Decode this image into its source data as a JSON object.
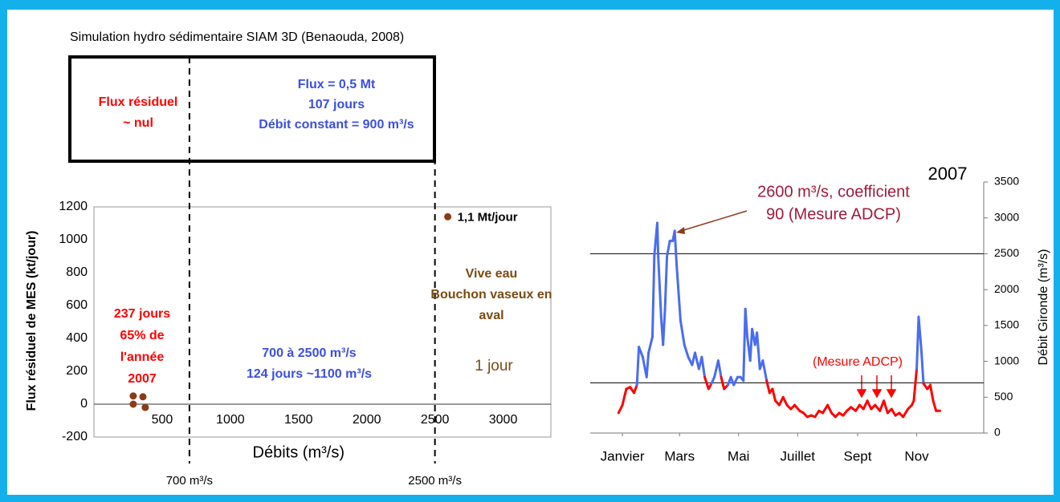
{
  "chart_data": [
    {
      "type": "scatter",
      "title": "Simulation hydro sédimentaire SIAM 3D (Benaouda, 2008)",
      "xlabel": "Débits (m³/s)",
      "ylabel": "Flux résiduel de MES (kt/jour)",
      "x": [
        288,
        359,
        288,
        376,
        2594
      ],
      "values": [
        50,
        45,
        0,
        -20,
        1140
      ],
      "color": "#8b3a1a",
      "xlim": [
        0,
        3350
      ],
      "ylim": [
        -200,
        1200
      ],
      "xticks": [
        500,
        1000,
        1500,
        2000,
        2500,
        3000
      ],
      "yticks": [
        -200,
        0,
        200,
        400,
        600,
        800,
        1000,
        1200
      ],
      "vlines": [
        700,
        2500
      ],
      "vline_labels": [
        "700 m³/s",
        "2500 m³/s"
      ],
      "point_label": "1,1 Mt/jour",
      "box": [
        {
          "lines": [
            "Flux résiduel",
            "~ nul"
          ],
          "color": "#ff0000"
        },
        {
          "lines": [
            "Flux = 0,5 Mt",
            "107 jours",
            "Débit constant = 900 m³/s"
          ],
          "color": "#3b4fe0"
        }
      ],
      "annotations": [
        {
          "lines": [
            "237 jours",
            "65% de",
            "l'année",
            "2007"
          ],
          "color": "#ff0000"
        },
        {
          "lines": [
            "700 à 2500 m³/s",
            "124 jours ~1100 m³/s"
          ],
          "color": "#3b4fe0"
        },
        {
          "lines": [
            "Vive eau",
            "Bouchon vaseux en",
            "aval"
          ],
          "color": "#7a4a10"
        },
        {
          "lines": [
            "1 jour"
          ],
          "color": "#7a4a10"
        }
      ]
    },
    {
      "type": "line",
      "title": "2007",
      "ylabel": "Débit Gironde (m³/s)",
      "x": [
        11,
        15,
        19,
        23,
        27,
        30,
        32,
        36,
        40,
        42,
        46,
        48,
        51,
        52,
        55,
        57,
        59,
        61,
        64,
        67,
        69,
        71,
        75,
        79,
        83,
        87,
        90,
        94,
        97,
        100,
        104,
        107,
        110,
        114,
        117,
        120,
        124,
        127,
        130,
        134,
        137,
        140,
        142,
        144,
        147,
        149,
        152,
        154,
        157,
        160,
        164,
        167,
        170,
        173,
        177,
        181,
        185,
        189,
        193,
        198,
        202,
        206,
        210,
        214,
        218,
        222,
        227,
        231,
        235,
        239,
        243,
        247,
        251,
        256,
        260,
        264,
        268,
        272,
        276,
        281,
        285,
        289,
        293,
        297,
        301,
        305,
        310,
        314,
        316,
        319,
        321,
        324,
        326,
        330,
        333,
        336,
        339,
        343
      ],
      "values": [
        280,
        390,
        615,
        640,
        560,
        670,
        1200,
        1060,
        780,
        1120,
        1340,
        2480,
        2930,
        2460,
        1620,
        1230,
        1730,
        2460,
        2680,
        2680,
        2820,
        2350,
        1570,
        1230,
        1060,
        950,
        1120,
        895,
        1060,
        780,
        615,
        690,
        780,
        1010,
        780,
        615,
        670,
        780,
        670,
        780,
        780,
        730,
        1730,
        1340,
        1010,
        1450,
        1230,
        1400,
        895,
        1010,
        730,
        560,
        615,
        450,
        390,
        500,
        390,
        335,
        390,
        310,
        280,
        225,
        245,
        225,
        310,
        280,
        390,
        280,
        225,
        280,
        245,
        310,
        360,
        310,
        390,
        335,
        450,
        335,
        390,
        310,
        450,
        280,
        335,
        245,
        280,
        225,
        335,
        390,
        450,
        895,
        1620,
        1120,
        690,
        615,
        670,
        450,
        310,
        310
      ],
      "threshold": 700,
      "color_above": "#4a6cf0",
      "color_below": "#ff0000",
      "xlim": [
        0,
        365
      ],
      "ylim": [
        0,
        3500
      ],
      "xticks": [
        {
          "value": 15,
          "label": "Janvier"
        },
        {
          "value": 74,
          "label": "Mars"
        },
        {
          "value": 135,
          "label": "Mai"
        },
        {
          "value": 196,
          "label": "Juillet"
        },
        {
          "value": 258,
          "label": "Sept"
        },
        {
          "value": 319,
          "label": "Nov"
        }
      ],
      "yticks": [
        0,
        500,
        1000,
        1500,
        2000,
        2500,
        3000,
        3500
      ],
      "hlines": [
        700,
        2500
      ],
      "annotations": [
        {
          "lines": [
            "2600 m³/s, coefficient",
            "90 (Mesure ADCP)"
          ],
          "color": "#a0193c"
        },
        {
          "lines": [
            "(Mesure ADCP)"
          ],
          "color": "#ff0000"
        }
      ]
    }
  ]
}
